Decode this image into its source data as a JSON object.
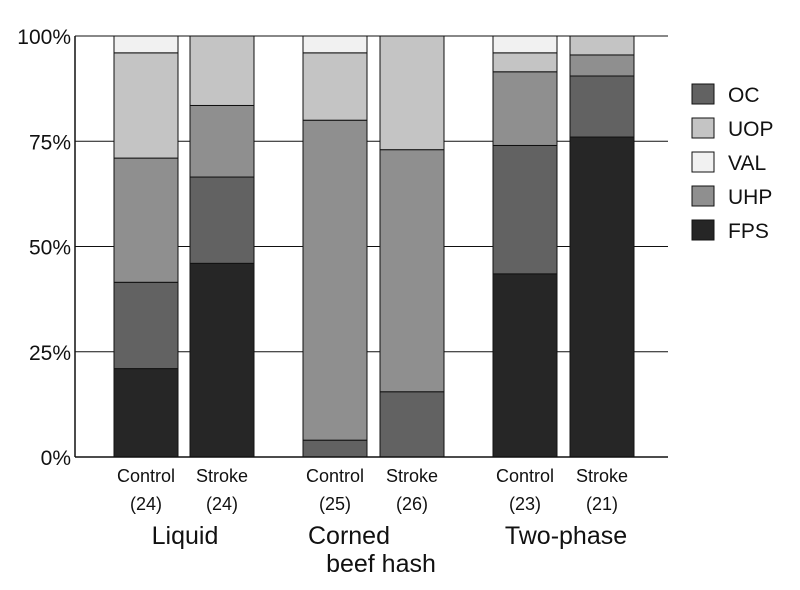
{
  "chart_data": {
    "type": "bar",
    "stacked": true,
    "percent_axis": true,
    "ylim": [
      0,
      100
    ],
    "y_ticks": [
      "0%",
      "25%",
      "50%",
      "75%",
      "100%"
    ],
    "grid": true,
    "legend_position": "right",
    "bars": [
      {
        "label": "Control",
        "n": "(24)",
        "group": 0
      },
      {
        "label": "Stroke",
        "n": "(24)",
        "group": 0
      },
      {
        "label": "Control",
        "n": "(25)",
        "group": 1
      },
      {
        "label": "Stroke",
        "n": "(26)",
        "group": 1
      },
      {
        "label": "Control",
        "n": "(23)",
        "group": 2
      },
      {
        "label": "Stroke",
        "n": "(21)",
        "group": 2
      }
    ],
    "groups": [
      {
        "lines": [
          "Liquid"
        ]
      },
      {
        "lines": [
          "Corned",
          "beef hash"
        ]
      },
      {
        "lines": [
          "Two-phase"
        ]
      }
    ],
    "series": [
      {
        "name": "FPS",
        "color": "#262626",
        "values": [
          21,
          46,
          0,
          0,
          43.5,
          76
        ]
      },
      {
        "name": "OC",
        "color": "#626262",
        "values": [
          20.5,
          20.5,
          4,
          15.5,
          30.5,
          14.5
        ]
      },
      {
        "name": "UHP",
        "color": "#8f8f8f",
        "values": [
          29.5,
          17,
          76,
          57.5,
          17.5,
          5
        ]
      },
      {
        "name": "UOP",
        "color": "#c4c4c4",
        "values": [
          25,
          16.5,
          16,
          27,
          4.5,
          4.5
        ]
      },
      {
        "name": "VAL",
        "color": "#f1f1f1",
        "values": [
          4,
          0,
          4,
          0,
          4,
          0
        ]
      }
    ],
    "legend_order": [
      "OC",
      "UOP",
      "VAL",
      "UHP",
      "FPS"
    ]
  }
}
